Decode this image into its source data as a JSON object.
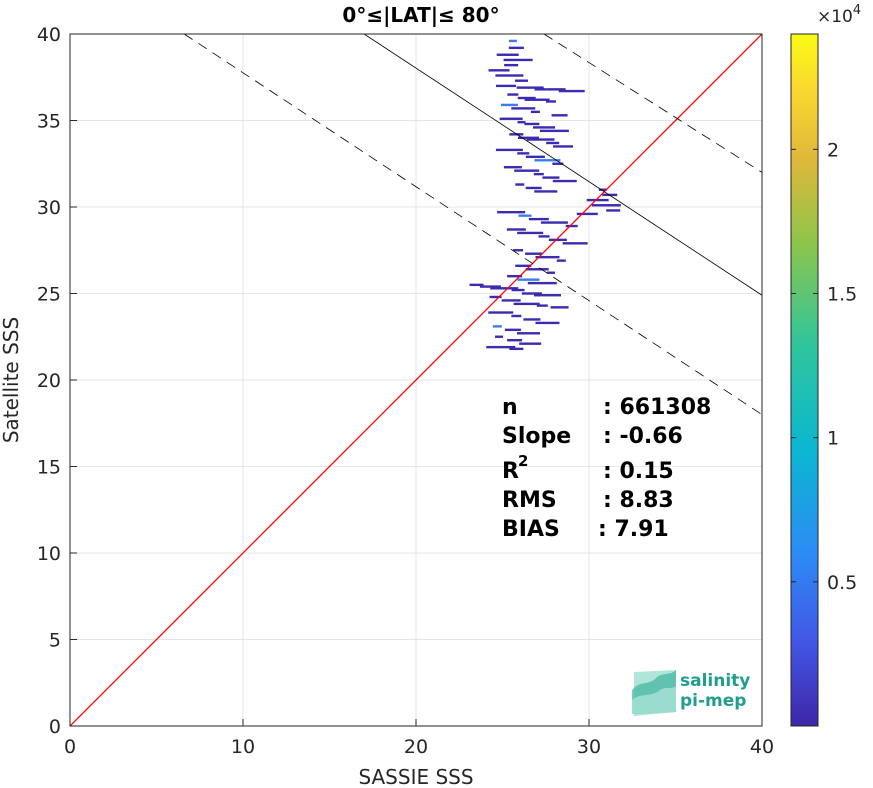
{
  "chart_data": {
    "type": "heatmap",
    "title": "0°≤|LAT|≤ 80°",
    "xlabel": "SASSIE SSS",
    "ylabel": "Satellite SSS",
    "xlim": [
      0,
      40
    ],
    "ylim": [
      0,
      40
    ],
    "x_ticks": [
      "0",
      "10",
      "20",
      "30",
      "40"
    ],
    "y_ticks": [
      "0",
      "5",
      "10",
      "15",
      "20",
      "25",
      "30",
      "35",
      "40"
    ],
    "grid": true,
    "colorbar": {
      "exponent_label": "×10",
      "exponent": "4",
      "range": [
        0,
        2.4
      ],
      "ticks": [
        "0.5",
        "1",
        "1.5",
        "2"
      ],
      "tick_values": [
        0.5,
        1,
        1.5,
        2
      ],
      "colors": [
        "#3e26a8",
        "#4256e6",
        "#2c8cf5",
        "#0bb7d1",
        "#2fc59c",
        "#8fc54a",
        "#e0b83a",
        "#fbd830",
        "#f9fb15"
      ]
    },
    "lines": [
      {
        "kind": "one-to-one",
        "color": "#ff0000",
        "x": [
          0,
          40
        ],
        "y": [
          0,
          40
        ]
      },
      {
        "kind": "regression",
        "color": "#000000",
        "x": [
          17,
          40
        ],
        "y": [
          40,
          24.9
        ]
      },
      {
        "kind": "confidence",
        "color": "#000000",
        "dashed": true,
        "x": [
          6.6,
          40
        ],
        "y": [
          40,
          18
        ]
      },
      {
        "kind": "confidence",
        "color": "#000000",
        "dashed": true,
        "x": [
          27.4,
          40
        ],
        "y": [
          40,
          32
        ]
      }
    ],
    "points": [
      [
        25.6,
        39.6
      ],
      [
        25.8,
        39.2
      ],
      [
        25.3,
        38.8
      ],
      [
        25.9,
        38.5
      ],
      [
        25.5,
        38.2
      ],
      [
        24.8,
        37.9
      ],
      [
        25.4,
        37.6
      ],
      [
        26.1,
        37.3
      ],
      [
        25.2,
        37.0
      ],
      [
        26.6,
        36.9
      ],
      [
        27.2,
        36.8
      ],
      [
        28.1,
        36.8
      ],
      [
        29.0,
        36.7
      ],
      [
        25.6,
        36.5
      ],
      [
        26.4,
        36.3
      ],
      [
        27.0,
        36.2
      ],
      [
        27.8,
        36.1
      ],
      [
        25.4,
        35.9
      ],
      [
        26.2,
        35.7
      ],
      [
        26.9,
        35.5
      ],
      [
        28.3,
        35.3
      ],
      [
        25.5,
        35.1
      ],
      [
        26.1,
        34.9
      ],
      [
        26.7,
        34.8
      ],
      [
        27.4,
        34.6
      ],
      [
        28.0,
        34.4
      ],
      [
        25.8,
        34.2
      ],
      [
        26.5,
        34.0
      ],
      [
        27.2,
        33.9
      ],
      [
        27.9,
        33.7
      ],
      [
        28.5,
        33.5
      ],
      [
        25.4,
        33.3
      ],
      [
        26.2,
        33.1
      ],
      [
        26.9,
        32.9
      ],
      [
        27.6,
        32.7
      ],
      [
        28.2,
        32.5
      ],
      [
        25.6,
        32.3
      ],
      [
        26.4,
        32.1
      ],
      [
        27.1,
        31.9
      ],
      [
        27.8,
        31.7
      ],
      [
        28.6,
        31.5
      ],
      [
        26.0,
        31.3
      ],
      [
        26.8,
        31.1
      ],
      [
        27.5,
        30.9
      ],
      [
        30.8,
        31.0
      ],
      [
        31.2,
        30.7
      ],
      [
        30.5,
        30.4
      ],
      [
        31.0,
        30.1
      ],
      [
        31.4,
        29.8
      ],
      [
        29.9,
        29.6
      ],
      [
        25.5,
        29.7
      ],
      [
        26.3,
        29.5
      ],
      [
        27.1,
        29.3
      ],
      [
        28.0,
        29.1
      ],
      [
        29.0,
        28.9
      ],
      [
        25.8,
        28.7
      ],
      [
        26.6,
        28.5
      ],
      [
        27.4,
        28.3
      ],
      [
        28.2,
        28.1
      ],
      [
        29.2,
        27.9
      ],
      [
        25.9,
        27.5
      ],
      [
        26.8,
        27.3
      ],
      [
        27.6,
        27.1
      ],
      [
        28.4,
        26.9
      ],
      [
        26.2,
        26.6
      ],
      [
        27.0,
        26.4
      ],
      [
        27.8,
        26.2
      ],
      [
        25.7,
        26.0
      ],
      [
        26.5,
        25.8
      ],
      [
        27.3,
        25.6
      ],
      [
        23.5,
        25.5
      ],
      [
        24.3,
        25.4
      ],
      [
        25.1,
        25.3
      ],
      [
        25.9,
        25.2
      ],
      [
        26.7,
        25.0
      ],
      [
        27.6,
        24.9
      ],
      [
        24.6,
        24.8
      ],
      [
        25.5,
        24.6
      ],
      [
        26.4,
        24.4
      ],
      [
        27.3,
        24.3
      ],
      [
        28.3,
        24.2
      ],
      [
        24.9,
        23.9
      ],
      [
        25.8,
        23.7
      ],
      [
        26.7,
        23.5
      ],
      [
        27.6,
        23.3
      ],
      [
        24.7,
        23.1
      ],
      [
        25.6,
        22.9
      ],
      [
        26.5,
        22.7
      ],
      [
        24.8,
        22.5
      ],
      [
        25.7,
        22.3
      ],
      [
        26.6,
        22.1
      ],
      [
        24.9,
        21.9
      ],
      [
        25.8,
        21.8
      ]
    ],
    "stats": {
      "n_label": "n",
      "n_value": ": 661308",
      "slope_label": "Slope",
      "slope_value": ": -0.66",
      "r2_label": "R",
      "r2_sup": "2",
      "r2_value": ": 0.15",
      "rms_label": "RMS",
      "rms_value": ": 8.83",
      "bias_label": "BIAS",
      "bias_value": ": 7.91"
    }
  },
  "logo": {
    "line1": "salinity",
    "line2": "pi-mep"
  }
}
